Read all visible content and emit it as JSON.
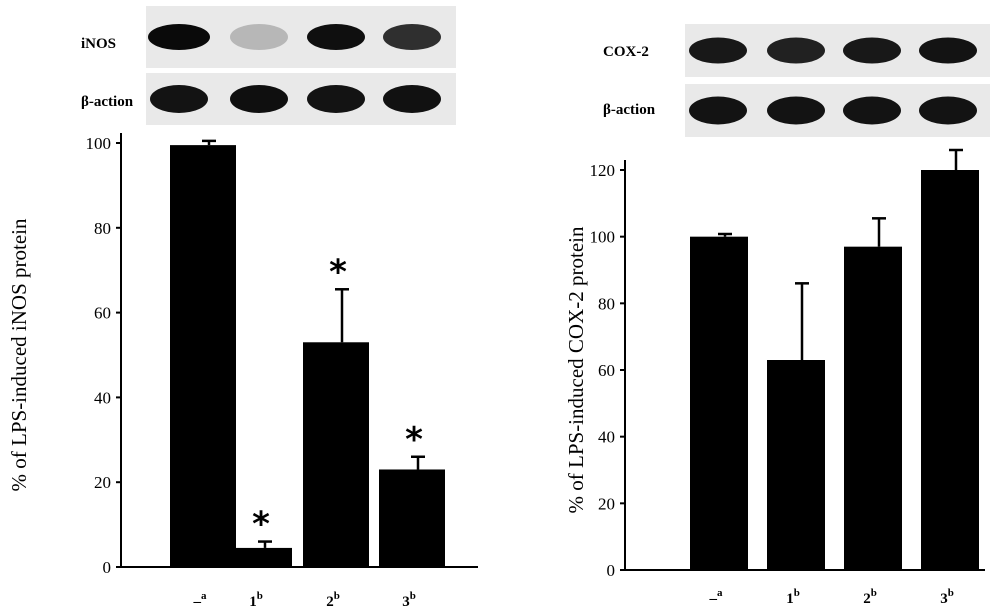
{
  "chart_data": [
    {
      "type": "bar",
      "title": "",
      "xlabel": "",
      "ylabel": "% of LPS-induced iNOS protein",
      "ylim": [
        0,
        100
      ],
      "yticks": [
        0,
        20,
        40,
        60,
        80,
        100
      ],
      "categories": [
        {
          "main": "–",
          "sup": "a"
        },
        {
          "main": "1",
          "sup": "b"
        },
        {
          "main": "2",
          "sup": "b"
        },
        {
          "main": "3",
          "sup": "b"
        }
      ],
      "values": [
        99.5,
        4.5,
        53,
        23
      ],
      "errors": [
        1,
        1.5,
        12.5,
        3
      ],
      "significance": [
        "",
        "*",
        "*",
        "*"
      ],
      "blot_labels": [
        "iNOS",
        "β-action"
      ],
      "grid": false,
      "bar_color": "#000000"
    },
    {
      "type": "bar",
      "title": "",
      "xlabel": "",
      "ylabel": "% of LPS-induced COX-2 protein",
      "ylim": [
        0,
        120
      ],
      "yticks": [
        0,
        20,
        40,
        60,
        80,
        100,
        120
      ],
      "categories": [
        {
          "main": "–",
          "sup": "a"
        },
        {
          "main": "1",
          "sup": "b"
        },
        {
          "main": "2",
          "sup": "b"
        },
        {
          "main": "3",
          "sup": "b"
        }
      ],
      "values": [
        100,
        63,
        97,
        120
      ],
      "errors": [
        0.8,
        23,
        8.5,
        6
      ],
      "significance": [
        "",
        "",
        "",
        ""
      ],
      "blot_labels": [
        "COX-2",
        "β-action"
      ],
      "grid": false,
      "bar_color": "#000000"
    }
  ]
}
